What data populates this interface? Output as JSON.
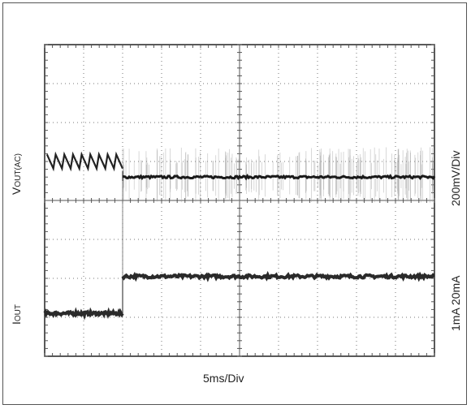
{
  "chart_data": {
    "type": "line",
    "title": "",
    "x_scale_label": "5ms/Div",
    "x_divisions": 10,
    "y_divisions": 8,
    "grid": true,
    "traces": [
      {
        "name_main": "V",
        "name_sub": "OUT(AC)",
        "scale_label": "200mV/Div",
        "x_div": [
          0,
          1,
          2,
          2,
          4,
          6,
          8,
          10
        ],
        "y_div": [
          5.0,
          5.0,
          5.0,
          4.6,
          4.6,
          4.6,
          4.6,
          4.6
        ],
        "ripple_before_x_div": [
          0,
          2
        ],
        "ripple_after_x_div": [
          2,
          10
        ],
        "color": "#222222"
      },
      {
        "name_main": "I",
        "name_sub": "OUT",
        "scale_label": "1mA  20mA",
        "x_div": [
          0,
          1,
          2,
          2,
          4,
          6,
          8,
          10
        ],
        "y_div": [
          1.1,
          1.1,
          1.1,
          2.05,
          2.05,
          2.05,
          2.05,
          2.05
        ],
        "color": "#222222"
      }
    ]
  }
}
